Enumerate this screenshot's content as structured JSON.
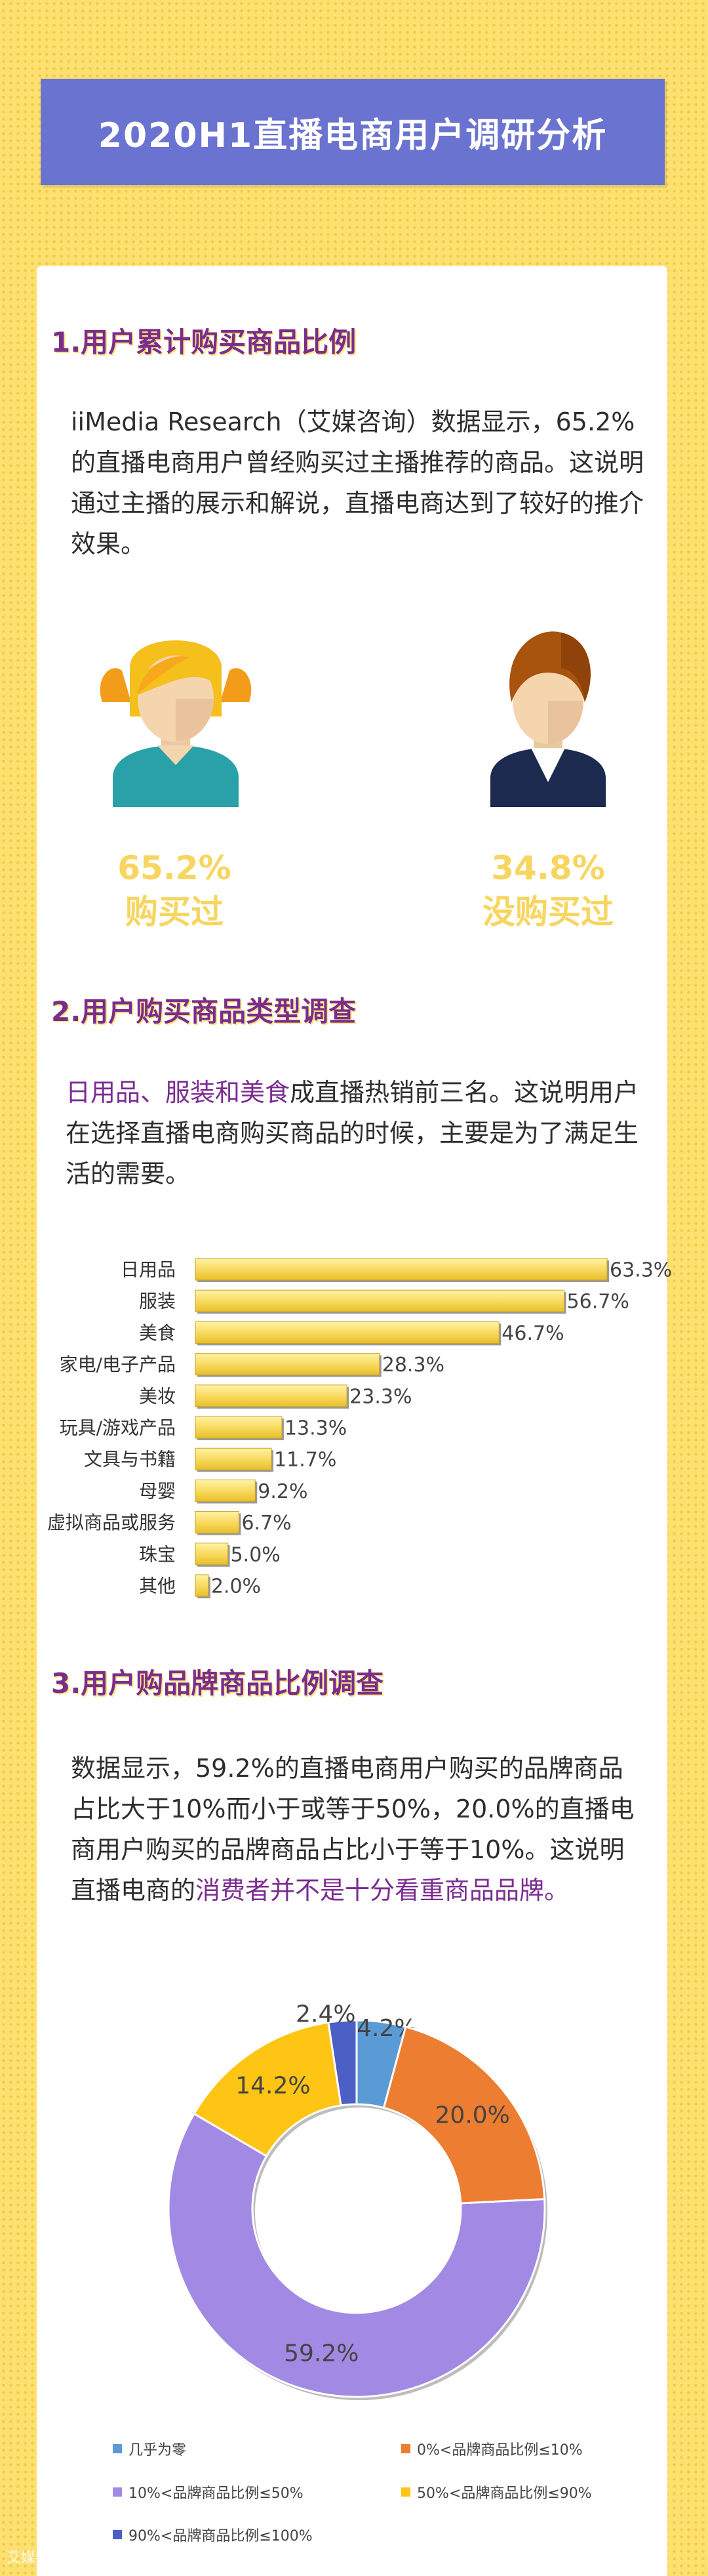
{
  "title": "2020H1直播电商用户调研分析",
  "section1": {
    "title": "1.用户累计购买商品比例",
    "text": "iiMedia Research（艾媒咨询）数据显示，65.2%的直播电商用户曾经购买过主播推荐的商品。这说明通过主播的展示和解说，直播电商达到了较好的推介效果。",
    "stat_bought_pct": "65.2%",
    "stat_bought_label": "购买过",
    "stat_not_pct": "34.8%",
    "stat_not_label": "没购买过"
  },
  "section2": {
    "title": "2.用户购买商品类型调查",
    "text_highlight": "日用品、服装和美食",
    "text_rest": "成直播热销前三名。这说明用户在选择直播电商购买商品的时候，主要是为了满足生活的需要。"
  },
  "section3": {
    "title": "3.用户购品牌商品比例调查",
    "text_main": "数据显示，59.2%的直播电商用户购买的品牌商品占比大于10%而小于或等于50%，20.0%的直播电商用户购买的品牌商品占比小于等于10%。这说明直播电商的",
    "text_highlight": "消费者并不是十分看重商品品牌。"
  },
  "chart_data": [
    {
      "type": "bar",
      "orientation": "horizontal",
      "categories": [
        "日用品",
        "服装",
        "美食",
        "家电/电子产品",
        "美妆",
        "玩具/游戏产品",
        "文具与书籍",
        "母婴",
        "虚拟商品或服务",
        "珠宝",
        "其他"
      ],
      "values": [
        63.3,
        56.7,
        46.7,
        28.3,
        23.3,
        13.3,
        11.7,
        9.2,
        6.7,
        5.0,
        2.0
      ],
      "value_labels": [
        "63.3%",
        "56.7%",
        "46.7%",
        "28.3%",
        "23.3%",
        "13.3%",
        "11.7%",
        "9.2%",
        "6.7%",
        "5.0%",
        "2.0%"
      ],
      "xlim": [
        0,
        63.3
      ],
      "bar_color": "#f7d85a"
    },
    {
      "type": "pie",
      "donut": true,
      "labels": [
        "几乎为零",
        "0%<品牌商品比例≤10%",
        "10%<品牌商品比例≤50%",
        "50%<品牌商品比例≤90%",
        "90%<品牌商品比例≤100%"
      ],
      "values": [
        4.2,
        20.0,
        59.2,
        14.2,
        2.4
      ],
      "value_labels": [
        "4.2%",
        "20.0%",
        "59.2%",
        "14.2%",
        "2.4%"
      ],
      "colors": [
        "#5b9bd5",
        "#ed7d31",
        "#a28ae4",
        "#fec514",
        "#4b5fc4"
      ],
      "legend_position": "bottom"
    }
  ],
  "icons": {
    "girl": "girl-avatar-icon",
    "boy": "boy-avatar-icon"
  },
  "watermark": "艾媒咨询"
}
